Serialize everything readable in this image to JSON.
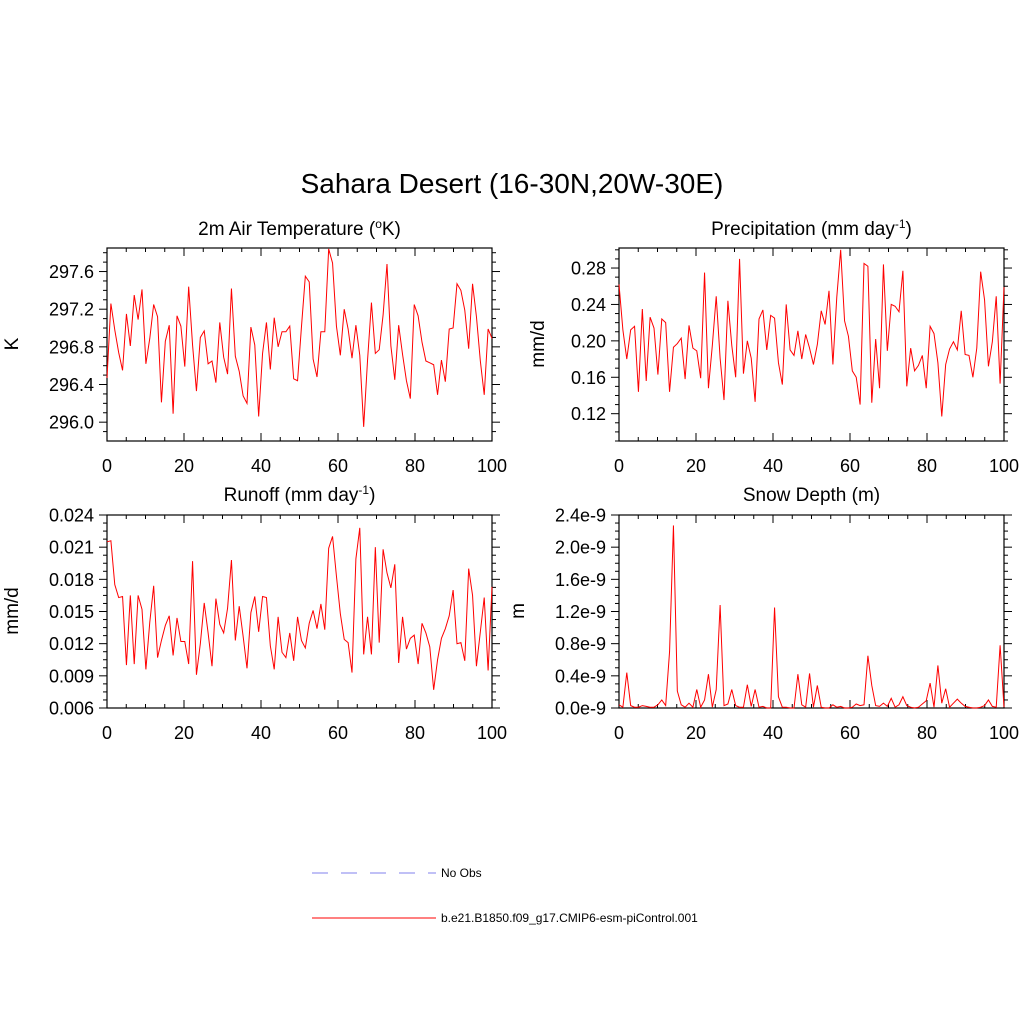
{
  "figure": {
    "title": "Sahara Desert (16-30N,20W-30E)"
  },
  "legend": {
    "entries": [
      {
        "label": "No Obs",
        "color": "#9a9af0",
        "style": "dashed"
      },
      {
        "label": "b.e21.B1850.f09_g17.CMIP6-esm-piControl.001",
        "color": "#ff0000",
        "style": "solid"
      }
    ]
  },
  "chart_data": [
    {
      "type": "line",
      "title": "2m Air Temperature (",
      "title_sup": "o",
      "title_after": "K)",
      "ylabel": "K",
      "xlabel": "",
      "xlim": [
        0,
        100
      ],
      "ylim": [
        295.8,
        297.85
      ],
      "xticks": [
        0,
        20,
        40,
        60,
        80,
        100
      ],
      "yticks": [
        296.0,
        296.4,
        296.8,
        297.2,
        297.6
      ],
      "ytick_labels": [
        "296.0",
        "296.4",
        "296.8",
        "297.2",
        "297.6"
      ],
      "xtick_labels": [
        "0",
        "20",
        "40",
        "60",
        "80",
        "100"
      ],
      "series": [
        {
          "name": "b.e21.B1850.f09_g17.CMIP6-esm-piControl.001",
          "color": "#ff0000",
          "values": [
            296.47,
            297.26,
            296.98,
            296.74,
            296.55,
            297.15,
            296.81,
            297.35,
            297.09,
            297.41,
            296.62,
            296.89,
            297.25,
            297.12,
            296.21,
            296.86,
            297.03,
            296.09,
            297.13,
            297.02,
            296.59,
            297.44,
            296.82,
            296.33,
            296.9,
            296.97,
            296.62,
            296.65,
            296.42,
            297.06,
            296.69,
            296.51,
            297.42,
            296.7,
            296.54,
            296.28,
            296.2,
            297.01,
            296.82,
            296.06,
            296.73,
            297.06,
            296.56,
            297.11,
            296.8,
            296.96,
            296.96,
            297.02,
            296.46,
            296.44,
            297.01,
            297.55,
            297.49,
            296.67,
            296.48,
            296.96,
            296.96,
            297.84,
            297.69,
            297.02,
            296.71,
            297.2,
            296.99,
            296.68,
            297.03,
            296.71,
            295.95,
            296.66,
            297.27,
            296.73,
            296.77,
            297.14,
            297.68,
            296.81,
            296.45,
            297.03,
            296.72,
            296.44,
            296.25,
            297.25,
            297.13,
            296.85,
            296.65,
            296.63,
            296.61,
            296.29,
            296.66,
            296.43,
            296.99,
            297.0,
            297.47,
            297.4,
            297.19,
            296.78,
            297.47,
            297.12,
            296.65,
            296.29,
            296.99,
            296.89
          ]
        }
      ]
    },
    {
      "type": "line",
      "title": "Precipitation (mm day",
      "title_sup": "-1",
      "title_after": ")",
      "ylabel": "mm/d",
      "xlabel": "",
      "xlim": [
        0,
        100
      ],
      "ylim": [
        0.09,
        0.302
      ],
      "xticks": [
        0,
        20,
        40,
        60,
        80,
        100
      ],
      "yticks": [
        0.12,
        0.16,
        0.2,
        0.24,
        0.28
      ],
      "ytick_labels": [
        "0.12",
        "0.16",
        "0.20",
        "0.24",
        "0.28"
      ],
      "xtick_labels": [
        "0",
        "20",
        "40",
        "60",
        "80",
        "100"
      ],
      "series": [
        {
          "name": "b.e21.B1850.f09_g17.CMIP6-esm-piControl.001",
          "color": "#ff0000",
          "values": [
            0.262,
            0.212,
            0.18,
            0.212,
            0.216,
            0.144,
            0.235,
            0.156,
            0.226,
            0.214,
            0.163,
            0.224,
            0.22,
            0.144,
            0.193,
            0.197,
            0.203,
            0.158,
            0.217,
            0.192,
            0.189,
            0.159,
            0.275,
            0.148,
            0.195,
            0.249,
            0.181,
            0.135,
            0.244,
            0.195,
            0.16,
            0.29,
            0.164,
            0.2,
            0.181,
            0.133,
            0.224,
            0.234,
            0.19,
            0.228,
            0.225,
            0.176,
            0.152,
            0.24,
            0.19,
            0.184,
            0.211,
            0.18,
            0.207,
            0.192,
            0.174,
            0.196,
            0.233,
            0.218,
            0.255,
            0.174,
            0.248,
            0.3,
            0.222,
            0.205,
            0.167,
            0.16,
            0.13,
            0.285,
            0.282,
            0.132,
            0.202,
            0.148,
            0.284,
            0.189,
            0.24,
            0.238,
            0.232,
            0.277,
            0.15,
            0.192,
            0.167,
            0.173,
            0.184,
            0.148,
            0.216,
            0.208,
            0.176,
            0.117,
            0.174,
            0.191,
            0.199,
            0.19,
            0.233,
            0.185,
            0.184,
            0.16,
            0.192,
            0.276,
            0.245,
            0.172,
            0.199,
            0.249,
            0.153,
            0.259
          ]
        }
      ]
    },
    {
      "type": "line",
      "title": "Runoff (mm day",
      "title_sup": "-1",
      "title_after": ")",
      "ylabel": "mm/d",
      "xlabel": "",
      "xlim": [
        0,
        100
      ],
      "ylim": [
        0.006,
        0.024
      ],
      "xticks": [
        0,
        20,
        40,
        60,
        80,
        100
      ],
      "yticks": [
        0.006,
        0.009,
        0.012,
        0.015,
        0.018,
        0.021,
        0.024
      ],
      "ytick_labels": [
        "0.006",
        "0.009",
        "0.012",
        "0.015",
        "0.018",
        "0.021",
        "0.024"
      ],
      "xtick_labels": [
        "0",
        "20",
        "40",
        "60",
        "80",
        "100"
      ],
      "series": [
        {
          "name": "b.e21.B1850.f09_g17.CMIP6-esm-piControl.001",
          "color": "#ff0000",
          "values": [
            0.0215,
            0.0216,
            0.0175,
            0.0163,
            0.0164,
            0.01,
            0.0165,
            0.0101,
            0.0165,
            0.0152,
            0.0096,
            0.014,
            0.0174,
            0.0107,
            0.0123,
            0.0137,
            0.0146,
            0.0109,
            0.0144,
            0.0122,
            0.0122,
            0.0101,
            0.0197,
            0.0091,
            0.012,
            0.0158,
            0.013,
            0.0099,
            0.0162,
            0.0138,
            0.013,
            0.0153,
            0.0198,
            0.0123,
            0.0155,
            0.0127,
            0.0097,
            0.0149,
            0.0164,
            0.0131,
            0.0164,
            0.0163,
            0.0118,
            0.0096,
            0.0145,
            0.0112,
            0.0107,
            0.013,
            0.0104,
            0.0145,
            0.0123,
            0.0116,
            0.0139,
            0.0151,
            0.0134,
            0.0157,
            0.0133,
            0.0209,
            0.022,
            0.0183,
            0.0148,
            0.0124,
            0.0121,
            0.0093,
            0.0199,
            0.0228,
            0.011,
            0.0145,
            0.011,
            0.021,
            0.0121,
            0.0208,
            0.0186,
            0.0172,
            0.0194,
            0.0102,
            0.0145,
            0.0115,
            0.0125,
            0.0128,
            0.0101,
            0.0139,
            0.013,
            0.0117,
            0.0077,
            0.0105,
            0.0125,
            0.0134,
            0.0146,
            0.017,
            0.012,
            0.0121,
            0.0104,
            0.019,
            0.0165,
            0.0099,
            0.0131,
            0.0163,
            0.0095,
            0.0173
          ]
        }
      ]
    },
    {
      "type": "line",
      "title": "Snow Depth (m)",
      "title_sup": "",
      "title_after": "",
      "ylabel": "m",
      "xlabel": "",
      "xlim": [
        0,
        100
      ],
      "ylim": [
        0,
        2.4e-09
      ],
      "xticks": [
        0,
        20,
        40,
        60,
        80,
        100
      ],
      "yticks": [
        0,
        4e-10,
        8e-10,
        1.2e-09,
        1.6e-09,
        2e-09,
        2.4e-09
      ],
      "ytick_labels": [
        "0.0e-9",
        "0.4e-9",
        "0.8e-9",
        "1.2e-9",
        "1.6e-9",
        "2.0e-9",
        "2.4e-9"
      ],
      "xtick_labels": [
        "0",
        "20",
        "40",
        "60",
        "80",
        "100"
      ],
      "series": [
        {
          "name": "b.e21.B1850.f09_g17.CMIP6-esm-piControl.001",
          "color": "#ff0000",
          "values": [
            4e-11,
            1e-11,
            4.4e-10,
            3e-11,
            1e-11,
            1e-11,
            3e-11,
            2e-11,
            1e-11,
            1e-11,
            4e-11,
            1e-10,
            3e-11,
            7e-10,
            2.27e-09,
            2.1e-10,
            4e-11,
            1e-11,
            6e-11,
            1e-11,
            2.3e-10,
            1e-11,
            1e-10,
            4.2e-10,
            1e-11,
            2.3e-10,
            1.28e-09,
            3e-11,
            5e-11,
            2.3e-10,
            3e-11,
            1e-11,
            1e-11,
            2.9e-10,
            2e-11,
            2.3e-10,
            1e-11,
            2e-11,
            0,
            0,
            1.25e-09,
            1.4e-10,
            1e-11,
            1e-11,
            0,
            0,
            4.2e-10,
            4e-11,
            1e-11,
            4.3e-10,
            1e-11,
            2.8e-10,
            1e-11,
            0,
            0,
            4e-11,
            1e-11,
            2e-11,
            0,
            0,
            1e-11,
            5e-11,
            3e-11,
            4e-11,
            6.5e-10,
            2.8e-10,
            3e-11,
            2e-11,
            6e-11,
            2e-11,
            1.2e-10,
            1e-11,
            4e-11,
            1.4e-10,
            3e-11,
            1e-11,
            0,
            1e-11,
            5e-11,
            9e-11,
            3.1e-10,
            1e-11,
            5.3e-10,
            6e-11,
            2.4e-10,
            1e-11,
            6e-11,
            1.1e-10,
            6e-11,
            2e-11,
            1e-11,
            0,
            0,
            1e-11,
            3e-11,
            1e-10,
            2e-11,
            1e-11,
            7.8e-10,
            1e-11
          ]
        }
      ]
    }
  ]
}
